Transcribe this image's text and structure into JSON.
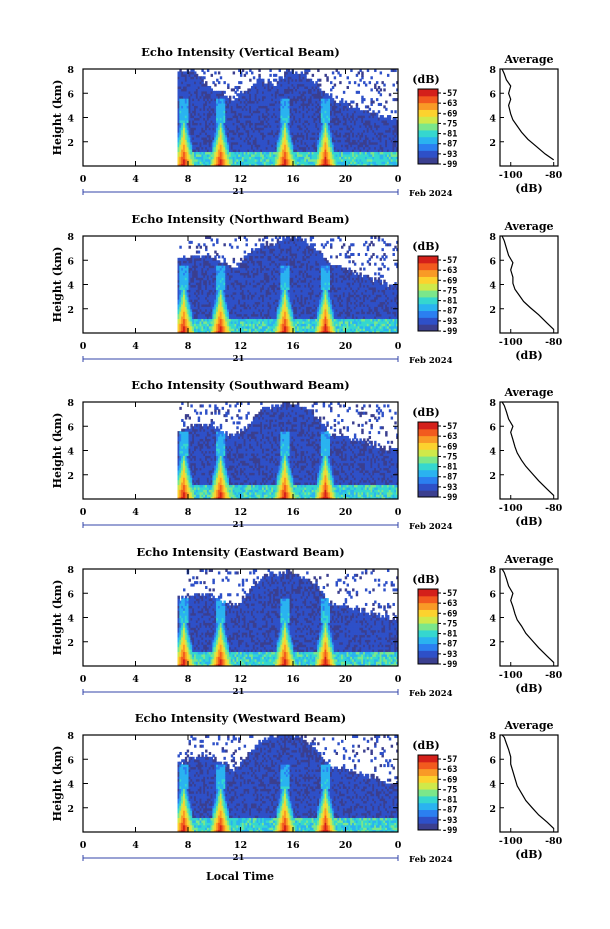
{
  "figure": {
    "xlabel": "Local Time",
    "date_label": "Feb 2024",
    "day_label": "21",
    "colorbar_unit": "(dB)",
    "colorbar_ticks": [
      "-57",
      "-63",
      "-69",
      "-75",
      "-81",
      "-87",
      "-93",
      "-99"
    ],
    "avg_title": "Average",
    "avg_xlabel": "(dB)",
    "colormap": [
      "#3b3f8f",
      "#2e50c8",
      "#2b7ff0",
      "#2ab3f0",
      "#35d7cf",
      "#7be78a",
      "#cfe94a",
      "#fcd22e",
      "#f99a26",
      "#f25a1e",
      "#d4201a"
    ]
  },
  "chart_data": [
    {
      "type": "heatmap",
      "title": "Echo Intensity (Vertical Beam)",
      "ylabel": "Height (km)",
      "xlim": [
        0,
        24
      ],
      "ylim": [
        0,
        8
      ],
      "xticks": [
        "0",
        "4",
        "8",
        "12",
        "16",
        "20",
        "0"
      ],
      "yticks": [
        "2",
        "4",
        "6",
        "8"
      ],
      "data_start_hour": 7.2,
      "cloud_top_km": [
        7.7,
        8.0,
        6.5,
        6.0,
        5.4,
        6.2,
        7.0,
        6.6,
        7.8,
        7.5,
        6.8,
        5.5,
        5.2,
        4.6,
        4.2,
        4.0,
        3.8
      ],
      "core_hours": [
        7.6,
        10.4,
        15.3,
        18.4
      ],
      "average": {
        "title": "Average",
        "xlabel": "(dB)",
        "xlim": [
          -105,
          -78
        ],
        "ylim": [
          0,
          8
        ],
        "xticks": [
          "-100",
          "-80"
        ],
        "yticks": [
          "2",
          "4",
          "6",
          "8"
        ],
        "profile": [
          [
            -80,
            0.5
          ],
          [
            -84,
            1.0
          ],
          [
            -88,
            1.6
          ],
          [
            -92,
            2.2
          ],
          [
            -95,
            2.8
          ],
          [
            -97,
            3.3
          ],
          [
            -99,
            3.8
          ],
          [
            -100,
            4.3
          ],
          [
            -101,
            5.0
          ],
          [
            -100,
            5.5
          ],
          [
            -101,
            6.0
          ],
          [
            -100,
            6.6
          ],
          [
            -102,
            7.1
          ],
          [
            -103,
            7.6
          ],
          [
            -104,
            8.0
          ]
        ]
      }
    },
    {
      "type": "heatmap",
      "title": "Echo Intensity (Northward Beam)",
      "ylabel": "Height (km)",
      "xlim": [
        0,
        24
      ],
      "ylim": [
        0,
        8
      ],
      "xticks": [
        "0",
        "4",
        "8",
        "12",
        "16",
        "20",
        "0"
      ],
      "yticks": [
        "2",
        "4",
        "6",
        "8"
      ],
      "data_start_hour": 7.2,
      "cloud_top_km": [
        6.0,
        6.2,
        6.4,
        6.0,
        5.2,
        6.4,
        7.2,
        7.4,
        8.0,
        7.6,
        6.9,
        5.6,
        5.3,
        4.8,
        4.4,
        4.0,
        3.8
      ],
      "core_hours": [
        7.6,
        10.4,
        15.3,
        18.4
      ],
      "average": {
        "title": "Average",
        "xlabel": "(dB)",
        "xlim": [
          -105,
          -78
        ],
        "ylim": [
          0,
          8
        ],
        "xticks": [
          "-100",
          "-80"
        ],
        "yticks": [
          "2",
          "4",
          "6",
          "8"
        ],
        "profile": [
          [
            -80,
            0.3
          ],
          [
            -83,
            0.8
          ],
          [
            -87,
            1.5
          ],
          [
            -91,
            2.1
          ],
          [
            -94,
            2.6
          ],
          [
            -96,
            3.1
          ],
          [
            -98,
            3.6
          ],
          [
            -99,
            4.1
          ],
          [
            -99,
            4.6
          ],
          [
            -100,
            5.2
          ],
          [
            -99,
            5.8
          ],
          [
            -101,
            6.4
          ],
          [
            -102,
            7.0
          ],
          [
            -103,
            7.6
          ],
          [
            -104,
            8.0
          ]
        ]
      }
    },
    {
      "type": "heatmap",
      "title": "Echo Intensity (Southward Beam)",
      "ylabel": "Height (km)",
      "xlim": [
        0,
        24
      ],
      "ylim": [
        0,
        8
      ],
      "xticks": [
        "0",
        "4",
        "8",
        "12",
        "16",
        "20",
        "0"
      ],
      "yticks": [
        "2",
        "4",
        "6",
        "8"
      ],
      "data_start_hour": 7.2,
      "cloud_top_km": [
        5.5,
        5.9,
        6.0,
        5.7,
        5.0,
        6.0,
        7.3,
        7.6,
        7.9,
        7.6,
        6.8,
        5.3,
        5.1,
        4.8,
        4.5,
        4.1,
        3.9
      ],
      "core_hours": [
        7.6,
        10.4,
        15.3,
        18.4
      ],
      "average": {
        "title": "Average",
        "xlabel": "(dB)",
        "xlim": [
          -105,
          -78
        ],
        "ylim": [
          0,
          8
        ],
        "xticks": [
          "-100",
          "-80"
        ],
        "yticks": [
          "2",
          "4",
          "6",
          "8"
        ],
        "profile": [
          [
            -80,
            0.3
          ],
          [
            -83,
            0.8
          ],
          [
            -87,
            1.5
          ],
          [
            -90,
            2.1
          ],
          [
            -93,
            2.7
          ],
          [
            -95,
            3.2
          ],
          [
            -97,
            3.8
          ],
          [
            -98,
            4.3
          ],
          [
            -99,
            4.9
          ],
          [
            -100,
            5.5
          ],
          [
            -99,
            6.0
          ],
          [
            -101,
            6.6
          ],
          [
            -102,
            7.2
          ],
          [
            -103,
            7.7
          ],
          [
            -104,
            8.0
          ]
        ]
      }
    },
    {
      "type": "heatmap",
      "title": "Echo Intensity (Eastward Beam)",
      "ylabel": "Height (km)",
      "xlim": [
        0,
        24
      ],
      "ylim": [
        0,
        8
      ],
      "xticks": [
        "0",
        "4",
        "8",
        "12",
        "16",
        "20",
        "0"
      ],
      "yticks": [
        "2",
        "4",
        "6",
        "8"
      ],
      "data_start_hour": 7.2,
      "cloud_top_km": [
        5.5,
        5.8,
        5.9,
        5.5,
        4.9,
        5.8,
        7.2,
        7.5,
        7.8,
        7.3,
        6.5,
        5.2,
        4.9,
        4.6,
        4.3,
        4.0,
        3.8
      ],
      "core_hours": [
        7.6,
        10.4,
        15.3,
        18.4
      ],
      "average": {
        "title": "Average",
        "xlabel": "(dB)",
        "xlim": [
          -105,
          -78
        ],
        "ylim": [
          0,
          8
        ],
        "xticks": [
          "-100",
          "-80"
        ],
        "yticks": [
          "2",
          "4",
          "6",
          "8"
        ],
        "profile": [
          [
            -80,
            0.3
          ],
          [
            -83,
            0.8
          ],
          [
            -87,
            1.5
          ],
          [
            -90,
            2.1
          ],
          [
            -93,
            2.7
          ],
          [
            -95,
            3.3
          ],
          [
            -97,
            3.8
          ],
          [
            -98,
            4.3
          ],
          [
            -99,
            4.9
          ],
          [
            -100,
            5.4
          ],
          [
            -99,
            6.0
          ],
          [
            -101,
            6.6
          ],
          [
            -102,
            7.2
          ],
          [
            -103,
            7.7
          ],
          [
            -104,
            8.0
          ]
        ]
      }
    },
    {
      "type": "heatmap",
      "title": "Echo Intensity (Westward Beam)",
      "ylabel": "Height (km)",
      "xlim": [
        0,
        24
      ],
      "ylim": [
        0,
        8
      ],
      "xticks": [
        "0",
        "4",
        "8",
        "12",
        "16",
        "20",
        "0"
      ],
      "yticks": [
        "2",
        "4",
        "6",
        "8"
      ],
      "data_start_hour": 7.2,
      "cloud_top_km": [
        5.6,
        6.0,
        6.2,
        5.8,
        5.0,
        6.2,
        7.5,
        7.8,
        8.0,
        7.6,
        6.8,
        5.3,
        5.1,
        4.8,
        4.5,
        4.1,
        3.9
      ],
      "core_hours": [
        7.6,
        10.4,
        15.3,
        18.4
      ],
      "average": {
        "title": "Average",
        "xlabel": "(dB)",
        "xlim": [
          -105,
          -78
        ],
        "ylim": [
          0,
          8
        ],
        "xticks": [
          "-100",
          "-80"
        ],
        "yticks": [
          "2",
          "4",
          "6",
          "8"
        ],
        "profile": [
          [
            -80,
            0.3
          ],
          [
            -83,
            0.8
          ],
          [
            -87,
            1.4
          ],
          [
            -90,
            2.0
          ],
          [
            -93,
            2.6
          ],
          [
            -95,
            3.2
          ],
          [
            -97,
            3.8
          ],
          [
            -98,
            4.4
          ],
          [
            -99,
            5.0
          ],
          [
            -100,
            5.6
          ],
          [
            -100,
            6.2
          ],
          [
            -101,
            6.8
          ],
          [
            -102,
            7.3
          ],
          [
            -103,
            7.8
          ],
          [
            -104,
            8.0
          ]
        ]
      }
    }
  ]
}
